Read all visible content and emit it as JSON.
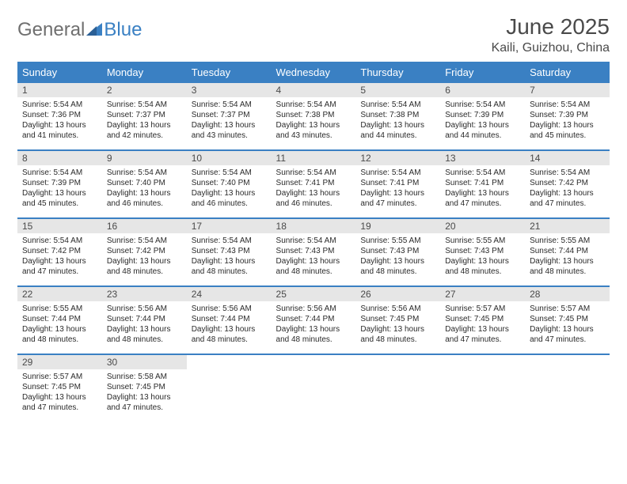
{
  "logo": {
    "text_gray": "General",
    "text_blue": "Blue"
  },
  "title": "June 2025",
  "location": "Kaili, Guizhou, China",
  "colors": {
    "header_bg": "#3a80c3",
    "header_text": "#ffffff",
    "daynum_bg": "#e6e6e6",
    "text": "#4a4a4a",
    "body_text": "#2a2a2a",
    "logo_gray": "#6f6f6f"
  },
  "weekdays": [
    "Sunday",
    "Monday",
    "Tuesday",
    "Wednesday",
    "Thursday",
    "Friday",
    "Saturday"
  ],
  "grid": {
    "cols": 7,
    "rows": 5
  },
  "days": [
    {
      "n": "1",
      "sr": "5:54 AM",
      "ss": "7:36 PM",
      "dl": "13 hours and 41 minutes."
    },
    {
      "n": "2",
      "sr": "5:54 AM",
      "ss": "7:37 PM",
      "dl": "13 hours and 42 minutes."
    },
    {
      "n": "3",
      "sr": "5:54 AM",
      "ss": "7:37 PM",
      "dl": "13 hours and 43 minutes."
    },
    {
      "n": "4",
      "sr": "5:54 AM",
      "ss": "7:38 PM",
      "dl": "13 hours and 43 minutes."
    },
    {
      "n": "5",
      "sr": "5:54 AM",
      "ss": "7:38 PM",
      "dl": "13 hours and 44 minutes."
    },
    {
      "n": "6",
      "sr": "5:54 AM",
      "ss": "7:39 PM",
      "dl": "13 hours and 44 minutes."
    },
    {
      "n": "7",
      "sr": "5:54 AM",
      "ss": "7:39 PM",
      "dl": "13 hours and 45 minutes."
    },
    {
      "n": "8",
      "sr": "5:54 AM",
      "ss": "7:39 PM",
      "dl": "13 hours and 45 minutes."
    },
    {
      "n": "9",
      "sr": "5:54 AM",
      "ss": "7:40 PM",
      "dl": "13 hours and 46 minutes."
    },
    {
      "n": "10",
      "sr": "5:54 AM",
      "ss": "7:40 PM",
      "dl": "13 hours and 46 minutes."
    },
    {
      "n": "11",
      "sr": "5:54 AM",
      "ss": "7:41 PM",
      "dl": "13 hours and 46 minutes."
    },
    {
      "n": "12",
      "sr": "5:54 AM",
      "ss": "7:41 PM",
      "dl": "13 hours and 47 minutes."
    },
    {
      "n": "13",
      "sr": "5:54 AM",
      "ss": "7:41 PM",
      "dl": "13 hours and 47 minutes."
    },
    {
      "n": "14",
      "sr": "5:54 AM",
      "ss": "7:42 PM",
      "dl": "13 hours and 47 minutes."
    },
    {
      "n": "15",
      "sr": "5:54 AM",
      "ss": "7:42 PM",
      "dl": "13 hours and 47 minutes."
    },
    {
      "n": "16",
      "sr": "5:54 AM",
      "ss": "7:42 PM",
      "dl": "13 hours and 48 minutes."
    },
    {
      "n": "17",
      "sr": "5:54 AM",
      "ss": "7:43 PM",
      "dl": "13 hours and 48 minutes."
    },
    {
      "n": "18",
      "sr": "5:54 AM",
      "ss": "7:43 PM",
      "dl": "13 hours and 48 minutes."
    },
    {
      "n": "19",
      "sr": "5:55 AM",
      "ss": "7:43 PM",
      "dl": "13 hours and 48 minutes."
    },
    {
      "n": "20",
      "sr": "5:55 AM",
      "ss": "7:43 PM",
      "dl": "13 hours and 48 minutes."
    },
    {
      "n": "21",
      "sr": "5:55 AM",
      "ss": "7:44 PM",
      "dl": "13 hours and 48 minutes."
    },
    {
      "n": "22",
      "sr": "5:55 AM",
      "ss": "7:44 PM",
      "dl": "13 hours and 48 minutes."
    },
    {
      "n": "23",
      "sr": "5:56 AM",
      "ss": "7:44 PM",
      "dl": "13 hours and 48 minutes."
    },
    {
      "n": "24",
      "sr": "5:56 AM",
      "ss": "7:44 PM",
      "dl": "13 hours and 48 minutes."
    },
    {
      "n": "25",
      "sr": "5:56 AM",
      "ss": "7:44 PM",
      "dl": "13 hours and 48 minutes."
    },
    {
      "n": "26",
      "sr": "5:56 AM",
      "ss": "7:45 PM",
      "dl": "13 hours and 48 minutes."
    },
    {
      "n": "27",
      "sr": "5:57 AM",
      "ss": "7:45 PM",
      "dl": "13 hours and 47 minutes."
    },
    {
      "n": "28",
      "sr": "5:57 AM",
      "ss": "7:45 PM",
      "dl": "13 hours and 47 minutes."
    },
    {
      "n": "29",
      "sr": "5:57 AM",
      "ss": "7:45 PM",
      "dl": "13 hours and 47 minutes."
    },
    {
      "n": "30",
      "sr": "5:58 AM",
      "ss": "7:45 PM",
      "dl": "13 hours and 47 minutes."
    }
  ],
  "labels": {
    "sunrise": "Sunrise:",
    "sunset": "Sunset:",
    "daylight": "Daylight:"
  }
}
